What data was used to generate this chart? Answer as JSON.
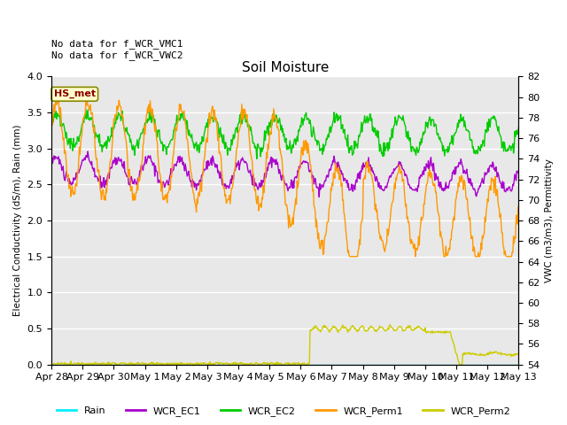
{
  "title": "Soil Moisture",
  "xlabel_ticks": [
    "Apr 28",
    "Apr 29",
    "Apr 30",
    "May 1",
    "May 2",
    "May 3",
    "May 4",
    "May 5",
    "May 6",
    "May 7",
    "May 8",
    "May 9",
    "May 10",
    "May 11",
    "May 12",
    "May 13"
  ],
  "ylabel_left": "Electrical Conductivity (dS/m), Rain (mm)",
  "ylabel_right": "VWC (m3/m3), Permittivity",
  "ylim_left": [
    0.0,
    4.0
  ],
  "ylim_right": [
    54,
    82
  ],
  "annotation_text": "No data for f_WCR_VMC1\nNo data for f_WCR_VWC2",
  "hs_met_label": "HS_met",
  "colors": {
    "rain": "#00eeff",
    "wcr_ec1": "#aa00cc",
    "wcr_ec2": "#00cc00",
    "wcr_perm1": "#ff9900",
    "wcr_perm2": "#cccc00",
    "background": "#e8e8e8"
  },
  "legend_entries": [
    "Rain",
    "WCR_EC1",
    "WCR_EC2",
    "WCR_Perm1",
    "WCR_Perm2"
  ],
  "figsize": [
    6.4,
    4.8
  ],
  "dpi": 100
}
